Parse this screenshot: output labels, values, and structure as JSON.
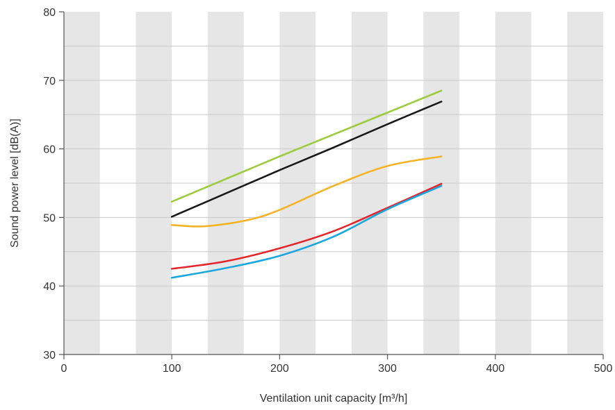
{
  "chart_data": {
    "type": "line",
    "title": "",
    "xlabel": "Ventilation unit capacity [m³/h]",
    "ylabel": "Sound power level [dB(A)]",
    "xlim": [
      0,
      500
    ],
    "ylim": [
      30,
      80
    ],
    "x_ticks": [
      0,
      100,
      200,
      300,
      400,
      500
    ],
    "y_ticks": [
      30,
      40,
      50,
      60,
      70,
      80
    ],
    "x_tick_labels": [
      "0",
      "100",
      "200",
      "300",
      "400",
      "500"
    ],
    "y_tick_labels": [
      "30",
      "40",
      "50",
      "60",
      "70",
      "80"
    ],
    "grid": true,
    "background_bands": "alternating vertical grey bands",
    "legend": "none",
    "series": [
      {
        "color": "#9ccc3c",
        "x": [
          100,
          150,
          200,
          250,
          300,
          350
        ],
        "y": [
          52.3,
          55.6,
          58.9,
          62.1,
          65.3,
          68.5
        ]
      },
      {
        "color": "#1a1a1a",
        "x": [
          100,
          150,
          200,
          250,
          300,
          350
        ],
        "y": [
          50.1,
          53.5,
          56.9,
          60.2,
          63.6,
          66.9
        ]
      },
      {
        "color": "#f5b323",
        "x": [
          100,
          130,
          170,
          200,
          250,
          300,
          350
        ],
        "y": [
          48.9,
          48.7,
          49.6,
          51.1,
          54.6,
          57.5,
          58.9
        ]
      },
      {
        "color": "#e3262b",
        "x": [
          100,
          150,
          200,
          250,
          300,
          350
        ],
        "y": [
          42.5,
          43.6,
          45.5,
          48.0,
          51.4,
          54.9
        ]
      },
      {
        "color": "#1aa7e0",
        "x": [
          100,
          150,
          200,
          250,
          300,
          350
        ],
        "y": [
          41.2,
          42.6,
          44.4,
          47.2,
          51.2,
          54.6
        ]
      }
    ]
  }
}
